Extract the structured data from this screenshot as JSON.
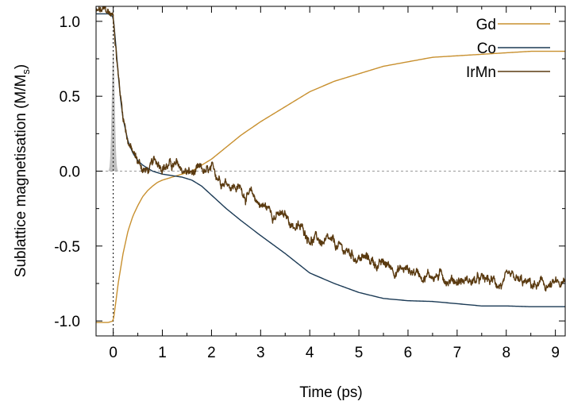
{
  "chart_data": {
    "type": "line",
    "xlabel": "Time (ps)",
    "ylabel_main": "Sublattice magnetisation (M/M",
    "ylabel_sub": "s",
    "ylabel_close": ")",
    "xlim": [
      -0.35,
      9.2
    ],
    "ylim": [
      -1.1,
      1.1
    ],
    "xticks": [
      0,
      1,
      2,
      3,
      4,
      5,
      6,
      7,
      8,
      9
    ],
    "xtick_labels": [
      "0",
      "1",
      "2",
      "3",
      "4",
      "5",
      "6",
      "7",
      "8",
      "9"
    ],
    "yticks": [
      -1.0,
      -0.5,
      0.0,
      0.5,
      1.0
    ],
    "ytick_labels": [
      "-1.0",
      "-0.5",
      "0.0",
      "0.5",
      "1.0"
    ],
    "legend_position": "top-right",
    "pulse": {
      "center": 0.0,
      "width": 0.03,
      "peak": 0.8,
      "color": "#c0c0c0"
    },
    "reference_lines": {
      "zero_line": "dashed-gray",
      "time_zero": "dotted-black"
    },
    "series": [
      {
        "name": "Gd",
        "color": "#c8902f",
        "x": [
          -0.35,
          -0.1,
          0.0,
          0.05,
          0.1,
          0.2,
          0.3,
          0.4,
          0.5,
          0.6,
          0.7,
          0.8,
          0.9,
          1.0,
          1.2,
          1.4,
          1.6,
          1.8,
          2.0,
          2.3,
          2.6,
          3.0,
          3.5,
          4.0,
          4.5,
          5.0,
          5.5,
          6.0,
          6.5,
          7.0,
          7.5,
          8.0,
          8.5,
          9.2
        ],
        "y": [
          -1.01,
          -1.01,
          -1.0,
          -0.88,
          -0.75,
          -0.55,
          -0.4,
          -0.3,
          -0.23,
          -0.17,
          -0.13,
          -0.1,
          -0.075,
          -0.06,
          -0.04,
          -0.02,
          0.0,
          0.04,
          0.08,
          0.16,
          0.24,
          0.33,
          0.43,
          0.53,
          0.6,
          0.65,
          0.7,
          0.73,
          0.76,
          0.77,
          0.78,
          0.79,
          0.8,
          0.8
        ]
      },
      {
        "name": "Co",
        "color": "#1b3a55",
        "x": [
          -0.35,
          -0.1,
          0.0,
          0.05,
          0.1,
          0.15,
          0.2,
          0.3,
          0.4,
          0.5,
          0.6,
          0.7,
          0.8,
          1.0,
          1.2,
          1.4,
          1.6,
          1.8,
          2.0,
          2.3,
          2.6,
          3.0,
          3.5,
          4.0,
          4.5,
          5.0,
          5.5,
          6.0,
          6.5,
          7.0,
          7.5,
          8.0,
          8.5,
          9.2
        ],
        "y": [
          1.05,
          1.05,
          1.03,
          0.85,
          0.65,
          0.48,
          0.35,
          0.2,
          0.12,
          0.07,
          0.04,
          0.02,
          0.0,
          -0.02,
          -0.03,
          -0.04,
          -0.06,
          -0.1,
          -0.16,
          -0.25,
          -0.33,
          -0.43,
          -0.55,
          -0.68,
          -0.75,
          -0.81,
          -0.85,
          -0.865,
          -0.87,
          -0.885,
          -0.9,
          -0.9,
          -0.905,
          -0.905
        ]
      },
      {
        "name": "IrMn",
        "color": "#5a3a10",
        "noisy": true,
        "x": [
          -0.35,
          -0.1,
          0.0,
          0.05,
          0.1,
          0.15,
          0.2,
          0.3,
          0.4,
          0.5,
          0.6,
          0.7,
          0.8,
          0.9,
          1.0,
          1.2,
          1.4,
          1.6,
          1.8,
          2.0,
          2.3,
          2.6,
          3.0,
          3.5,
          4.0,
          4.5,
          5.0,
          5.5,
          6.0,
          6.5,
          7.0,
          7.5,
          8.0,
          8.5,
          9.2
        ],
        "y": [
          1.06,
          1.05,
          1.03,
          0.85,
          0.66,
          0.5,
          0.38,
          0.22,
          0.12,
          0.06,
          0.02,
          0.0,
          0.03,
          0.05,
          0.06,
          0.04,
          0.0,
          -0.02,
          -0.02,
          -0.03,
          -0.05,
          -0.12,
          -0.22,
          -0.32,
          -0.43,
          -0.52,
          -0.57,
          -0.63,
          -0.66,
          -0.69,
          -0.72,
          -0.74,
          -0.75,
          -0.77,
          -0.77
        ]
      }
    ]
  }
}
